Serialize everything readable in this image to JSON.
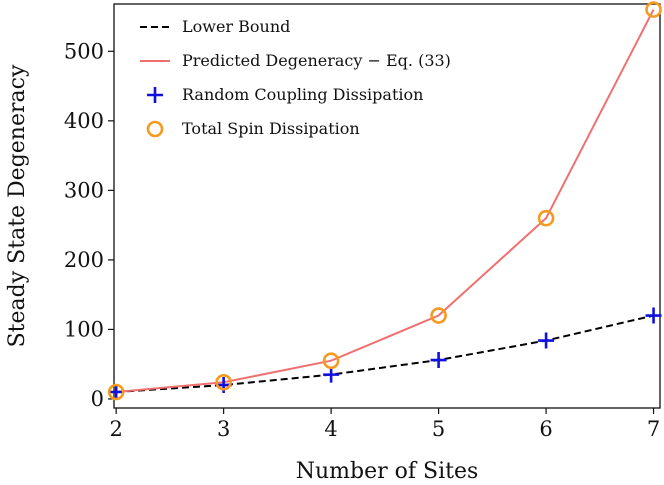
{
  "chart_data": {
    "type": "line",
    "title": "",
    "xlabel": "Number of Sites",
    "ylabel": "Steady State Degeneracy",
    "xlim": [
      1.98,
      7.06
    ],
    "ylim": [
      -13,
      568
    ],
    "x_ticks": [
      2,
      3,
      4,
      5,
      6,
      7
    ],
    "y_ticks": [
      0,
      100,
      200,
      300,
      400,
      500
    ],
    "grid": false,
    "legend_position": "top-left",
    "series": [
      {
        "name": "Lower Bound",
        "style": "dashed-line",
        "color": "#000000",
        "x": [
          2,
          3,
          4,
          5,
          6,
          7
        ],
        "y": [
          10,
          20,
          35,
          56,
          84,
          120
        ]
      },
      {
        "name": "Predicted Degeneracy  −  Eq. (33)",
        "style": "solid-line",
        "color": "#f07070",
        "x": [
          2,
          3,
          4,
          5,
          6,
          7
        ],
        "y": [
          10,
          24,
          55,
          120,
          260,
          560
        ]
      },
      {
        "name": "Random Coupling Dissipation",
        "style": "plus-marker",
        "color": "#1010e0",
        "x": [
          2,
          3,
          4,
          5,
          6,
          7
        ],
        "y": [
          10,
          20,
          35,
          56,
          84,
          120
        ]
      },
      {
        "name": "Total Spin Dissipation",
        "style": "circle-marker",
        "color": "#f59a1e",
        "x": [
          2,
          3,
          4,
          5,
          6,
          7
        ],
        "y": [
          10,
          24,
          55,
          120,
          260,
          560
        ]
      }
    ]
  }
}
